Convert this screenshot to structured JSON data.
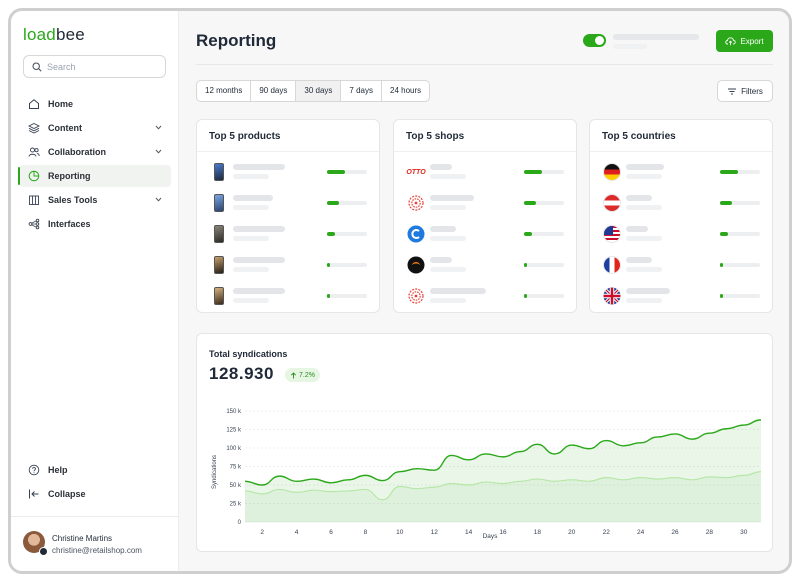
{
  "sidebar": {
    "logo": {
      "part1": "load",
      "part2": "bee"
    },
    "search_placeholder": "Search",
    "items": [
      {
        "label": "Home",
        "icon": "home-icon"
      },
      {
        "label": "Content",
        "icon": "layers-icon",
        "expandable": true
      },
      {
        "label": "Collaboration",
        "icon": "users-icon",
        "expandable": true
      },
      {
        "label": "Reporting",
        "icon": "pie-chart-icon",
        "active": true
      },
      {
        "label": "Sales Tools",
        "icon": "store-icon",
        "expandable": true
      },
      {
        "label": "Interfaces",
        "icon": "network-icon"
      }
    ],
    "bottom_items": [
      {
        "label": "Help",
        "icon": "help-icon"
      },
      {
        "label": "Collapse",
        "icon": "collapse-icon"
      }
    ],
    "user": {
      "name": "Christine Martins",
      "email": "christine@retailshop.com"
    }
  },
  "header": {
    "title": "Reporting",
    "toggle_on": true,
    "export_label": "Export"
  },
  "periods": {
    "options": [
      "12 months",
      "90 days",
      "30 days",
      "7 days",
      "24 hours"
    ],
    "selected": "30 days"
  },
  "filters_label": "Filters",
  "cards": {
    "products": {
      "title": "Top 5 products",
      "bars": [
        0.45,
        0.3,
        0.2,
        0.08,
        0.08
      ]
    },
    "shops": {
      "title": "Top 5 shops",
      "shops": [
        "otto",
        "spiral-logo",
        "c-logo",
        "dark-logo",
        "spiral-logo"
      ],
      "shop_text": "OTTO",
      "bars": [
        0.45,
        0.3,
        0.2,
        0.08,
        0.08
      ]
    },
    "countries": {
      "title": "Top 5 countries",
      "flags": [
        "germany",
        "austria",
        "usa",
        "france",
        "uk"
      ],
      "bars": [
        0.45,
        0.3,
        0.2,
        0.08,
        0.08
      ]
    }
  },
  "syndications": {
    "title": "Total syndications",
    "value": "128.930",
    "delta": "7.2%",
    "colors": {
      "primary": "#2ba81a",
      "secondary": "#b7e7a8"
    }
  },
  "chart_data": {
    "type": "area",
    "ylabel": "Syndications",
    "xlabel": "Days",
    "ylim": [
      0,
      150000
    ],
    "yticks": [
      0,
      25000,
      50000,
      75000,
      100000,
      125000,
      150000
    ],
    "ytick_labels": [
      "0",
      "25 k",
      "50 k",
      "75 k",
      "100 k",
      "125 k",
      "150 k"
    ],
    "xticks": [
      2,
      4,
      6,
      8,
      10,
      12,
      14,
      16,
      18,
      20,
      22,
      24,
      26,
      28,
      30
    ],
    "x": [
      1,
      2,
      3,
      4,
      5,
      6,
      7,
      8,
      9,
      10,
      11,
      12,
      13,
      14,
      15,
      16,
      17,
      18,
      19,
      20,
      21,
      22,
      23,
      24,
      25,
      26,
      27,
      28,
      29,
      30,
      31
    ],
    "series": [
      {
        "values": [
          55000,
          50000,
          62000,
          55000,
          58000,
          53000,
          57000,
          63000,
          56000,
          68000,
          72000,
          70000,
          90000,
          84000,
          92000,
          88000,
          95000,
          105000,
          92000,
          104000,
          99000,
          110000,
          103000,
          107000,
          115000,
          119000,
          112000,
          120000,
          126000,
          131000,
          138000
        ]
      },
      {
        "values": [
          42000,
          38000,
          44000,
          40000,
          43000,
          41000,
          42000,
          44000,
          30000,
          48000,
          45000,
          47000,
          52000,
          50000,
          54000,
          52000,
          55000,
          58000,
          55000,
          57000,
          55000,
          60000,
          57000,
          60000,
          58000,
          60000,
          57000,
          61000,
          60000,
          63000,
          68000
        ]
      }
    ],
    "grid": true
  }
}
